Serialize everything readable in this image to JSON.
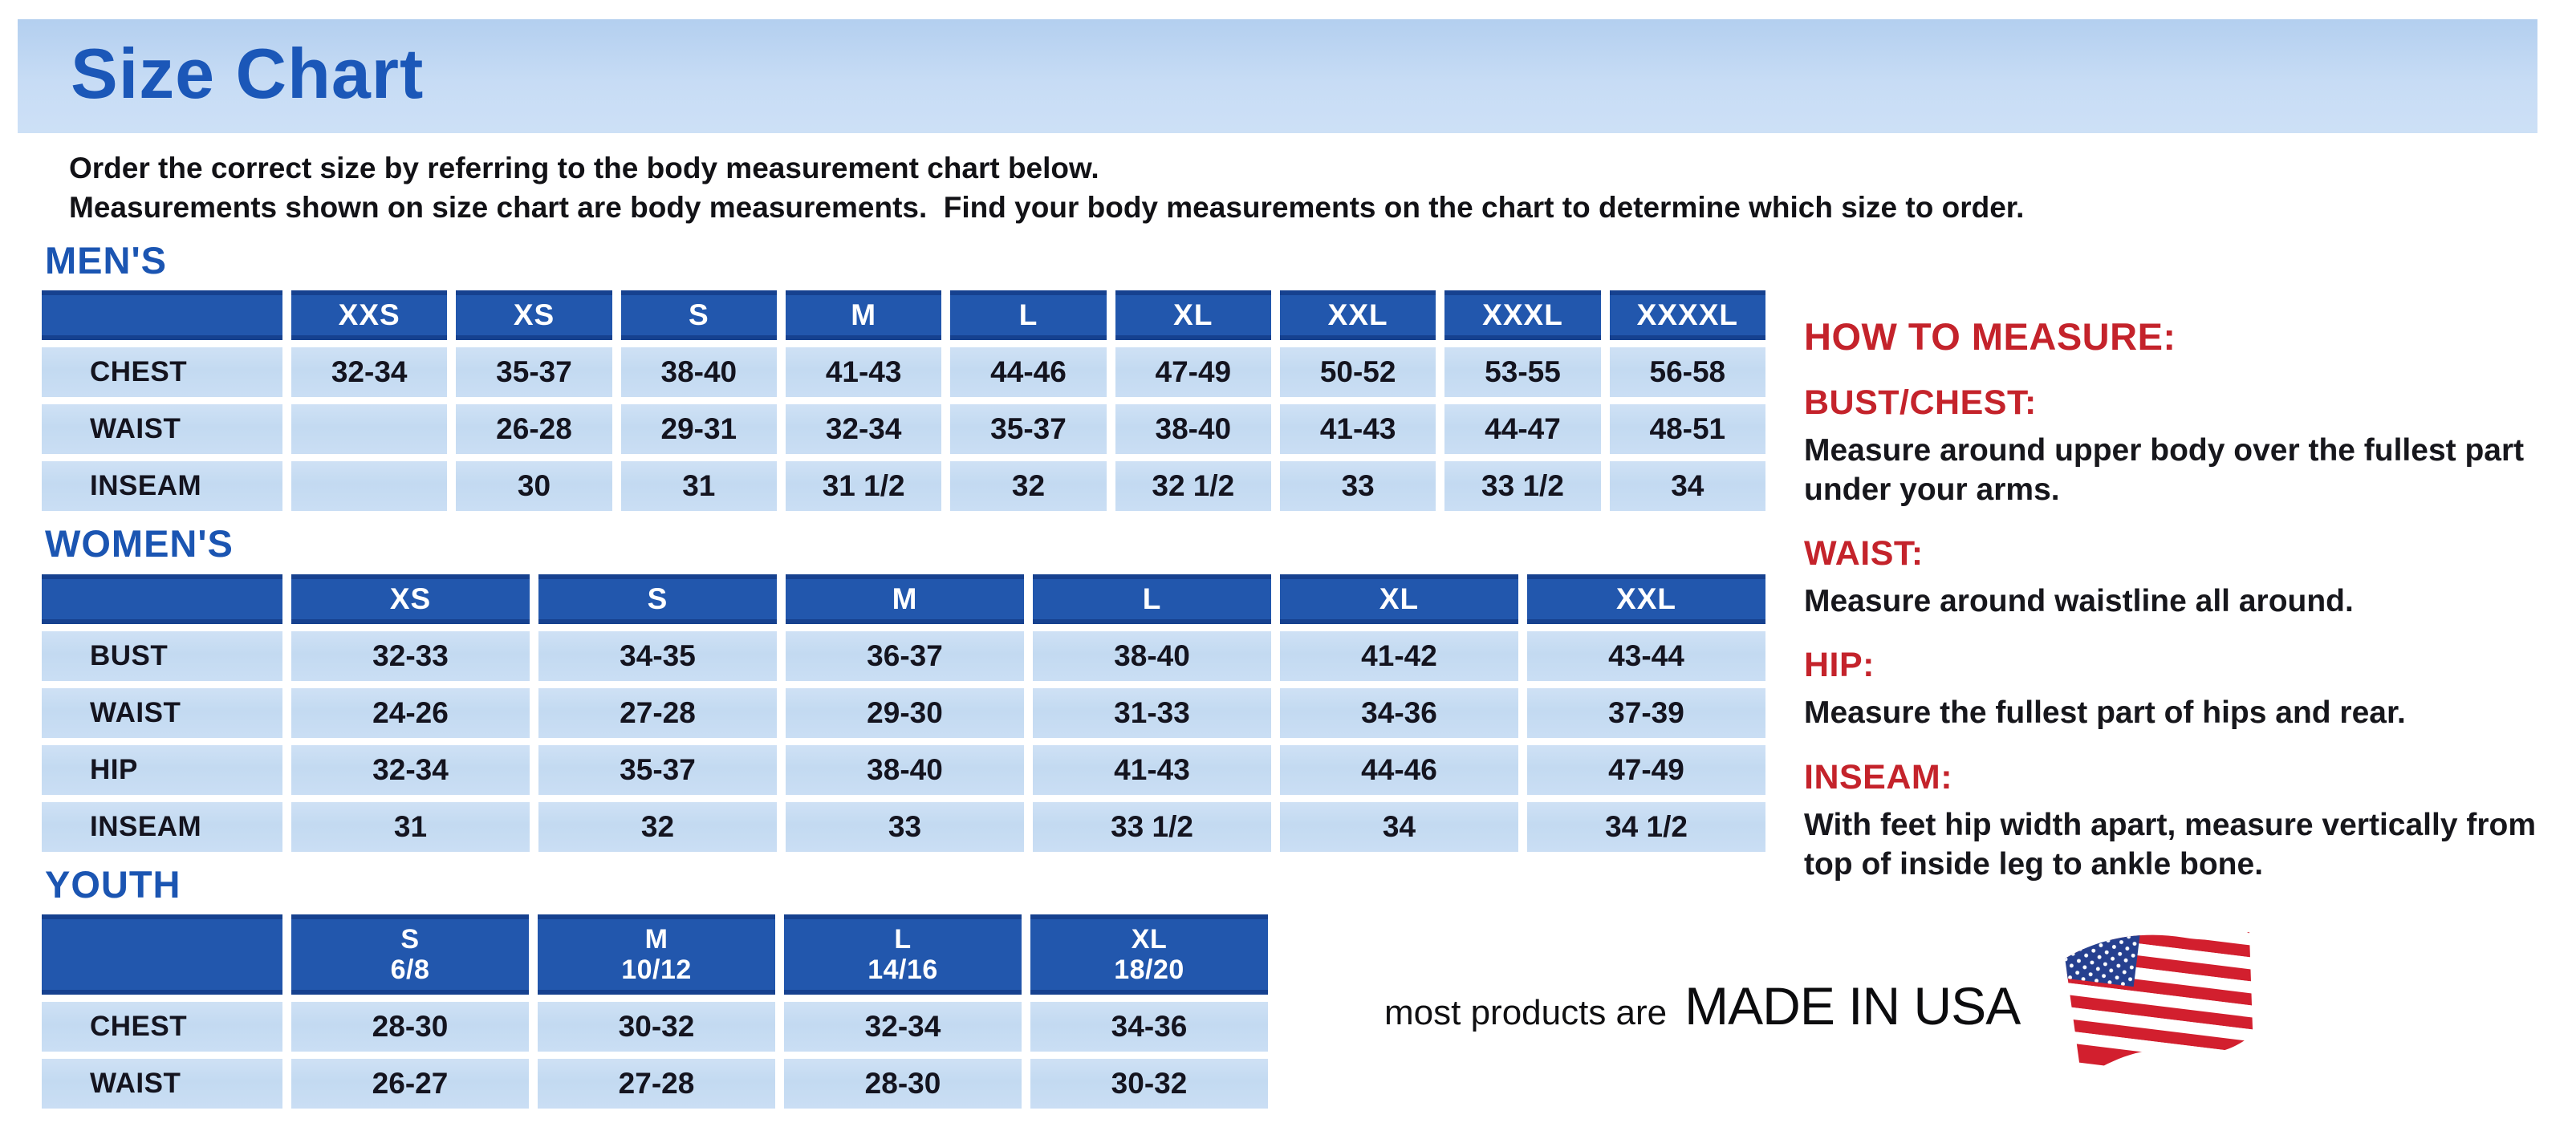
{
  "page": {
    "title": "Size Chart",
    "intro_line1": "Order the correct size by referring to the body measurement chart below.",
    "intro_line2": "Measurements shown on size chart are body measurements.  Find your body measurements on the chart to determine which size to order."
  },
  "colors": {
    "title_bar_blue": "#c3daf3",
    "heading_blue": "#1b55b2",
    "table_header_blue": "#2257ad",
    "table_header_edge": "#16418f",
    "cell_light_blue": "#c6dcf3",
    "accent_red": "#c4232b",
    "text_dark": "#14141f",
    "flag_red": "#d21f2e",
    "flag_blue": "#26408f"
  },
  "tables": {
    "mens": {
      "heading": "MEN'S",
      "columns": [
        "XXS",
        "XS",
        "S",
        "M",
        "L",
        "XL",
        "XXL",
        "XXXL",
        "XXXXL"
      ],
      "rows": [
        {
          "label": "CHEST",
          "values": [
            "32-34",
            "35-37",
            "38-40",
            "41-43",
            "44-46",
            "47-49",
            "50-52",
            "53-55",
            "56-58"
          ]
        },
        {
          "label": "WAIST",
          "values": [
            "",
            "26-28",
            "29-31",
            "32-34",
            "35-37",
            "38-40",
            "41-43",
            "44-47",
            "48-51"
          ]
        },
        {
          "label": "INSEAM",
          "values": [
            "",
            "30",
            "31",
            "31 1/2",
            "32",
            "32 1/2",
            "33",
            "33 1/2",
            "34"
          ]
        }
      ]
    },
    "womens": {
      "heading": "WOMEN'S",
      "columns": [
        "XS",
        "S",
        "M",
        "L",
        "XL",
        "XXL"
      ],
      "rows": [
        {
          "label": "BUST",
          "values": [
            "32-33",
            "34-35",
            "36-37",
            "38-40",
            "41-42",
            "43-44"
          ]
        },
        {
          "label": "WAIST",
          "values": [
            "24-26",
            "27-28",
            "29-30",
            "31-33",
            "34-36",
            "37-39"
          ]
        },
        {
          "label": "HIP",
          "values": [
            "32-34",
            "35-37",
            "38-40",
            "41-43",
            "44-46",
            "47-49"
          ]
        },
        {
          "label": "INSEAM",
          "values": [
            "31",
            "32",
            "33",
            "33 1/2",
            "34",
            "34 1/2"
          ]
        }
      ]
    },
    "youth": {
      "heading": "YOUTH",
      "columns": [
        {
          "line1": "S",
          "line2": "6/8"
        },
        {
          "line1": "M",
          "line2": "10/12"
        },
        {
          "line1": "L",
          "line2": "14/16"
        },
        {
          "line1": "XL",
          "line2": "18/20"
        }
      ],
      "rows": [
        {
          "label": "CHEST",
          "values": [
            "28-30",
            "30-32",
            "32-34",
            "34-36"
          ]
        },
        {
          "label": "WAIST",
          "values": [
            "26-27",
            "27-28",
            "28-30",
            "30-32"
          ]
        }
      ]
    }
  },
  "how_to_measure": {
    "heading": "HOW TO MEASURE:",
    "sections": [
      {
        "label": "BUST/CHEST:",
        "text": "Measure around upper body over the fullest part under your arms."
      },
      {
        "label": "WAIST:",
        "text": "Measure around waistline all around."
      },
      {
        "label": "HIP:",
        "text": "Measure the fullest part of hips and rear."
      },
      {
        "label": "INSEAM:",
        "text": "With feet hip width apart, measure vertically from top of inside leg to ankle bone."
      }
    ]
  },
  "footer": {
    "prefix": "most products are",
    "made_in": "MADE IN USA"
  },
  "icons": {
    "flag": "usa-flag-icon"
  }
}
